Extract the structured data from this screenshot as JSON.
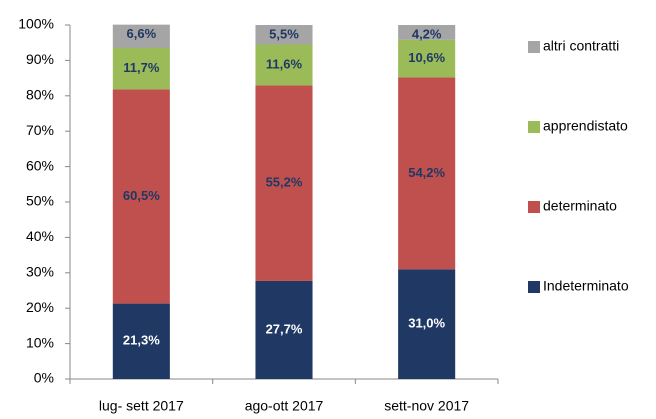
{
  "chart_data": {
    "type": "stacked_bar",
    "categories": [
      "lug- sett 2017",
      "ago-ott 2017",
      "sett-nov 2017"
    ],
    "series": [
      {
        "name": "Indeterminato",
        "color": "#1f3864",
        "values": [
          21.3,
          27.7,
          31.0
        ],
        "value_labels": [
          "21,3%",
          "27,7%",
          "31,0%"
        ]
      },
      {
        "name": "determinato",
        "color": "#c0504d",
        "values": [
          60.5,
          55.2,
          54.2
        ],
        "value_labels": [
          "60,5%",
          "55,2%",
          "54,2%"
        ]
      },
      {
        "name": "apprendistato",
        "color": "#9bbb59",
        "values": [
          11.7,
          11.6,
          10.6
        ],
        "value_labels": [
          "11,7%",
          "11,6%",
          "10,6%"
        ]
      },
      {
        "name": "altri contratti",
        "color": "#a5a5a5",
        "values": [
          6.6,
          5.5,
          4.2
        ],
        "value_labels": [
          "6,6%",
          "5,5%",
          "4,2%"
        ]
      }
    ],
    "ylim": [
      0,
      100
    ],
    "yticks": [
      {
        "value": 0,
        "label": "0%"
      },
      {
        "value": 10,
        "label": "10%"
      },
      {
        "value": 20,
        "label": "20%"
      },
      {
        "value": 30,
        "label": "30%"
      },
      {
        "value": 40,
        "label": "40%"
      },
      {
        "value": 50,
        "label": "50%"
      },
      {
        "value": 60,
        "label": "60%"
      },
      {
        "value": 70,
        "label": "70%"
      },
      {
        "value": 80,
        "label": "80%"
      },
      {
        "value": 90,
        "label": "90%"
      },
      {
        "value": 100,
        "label": "100%"
      }
    ],
    "grid": false,
    "legend": "right"
  }
}
